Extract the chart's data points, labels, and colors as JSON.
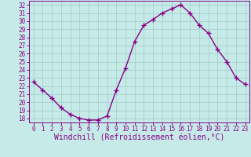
{
  "x": [
    0,
    1,
    2,
    3,
    4,
    5,
    6,
    7,
    8,
    9,
    10,
    11,
    12,
    13,
    14,
    15,
    16,
    17,
    18,
    19,
    20,
    21,
    22,
    23
  ],
  "y": [
    22.5,
    21.5,
    20.5,
    19.3,
    18.5,
    18.0,
    17.8,
    17.8,
    18.3,
    21.5,
    24.2,
    27.5,
    29.5,
    30.2,
    31.0,
    31.5,
    32.0,
    31.0,
    29.5,
    28.5,
    26.5,
    25.0,
    23.0,
    22.2
  ],
  "line_color": "#880088",
  "marker": "+",
  "marker_size": 4,
  "marker_lw": 1.0,
  "bg_color": "#c5eae7",
  "grid_color": "#a0ccc8",
  "xlabel": "Windchill (Refroidissement éolien,°C)",
  "xlabel_color": "#880088",
  "xlabel_fontsize": 7,
  "tick_color": "#880088",
  "tick_fontsize": 5.5,
  "ylim": [
    17.5,
    32.5
  ],
  "xlim": [
    -0.5,
    23.5
  ],
  "yticks": [
    18,
    19,
    20,
    21,
    22,
    23,
    24,
    25,
    26,
    27,
    28,
    29,
    30,
    31,
    32
  ],
  "xticks": [
    0,
    1,
    2,
    3,
    4,
    5,
    6,
    7,
    8,
    9,
    10,
    11,
    12,
    13,
    14,
    15,
    16,
    17,
    18,
    19,
    20,
    21,
    22,
    23
  ],
  "line_width": 1.0
}
